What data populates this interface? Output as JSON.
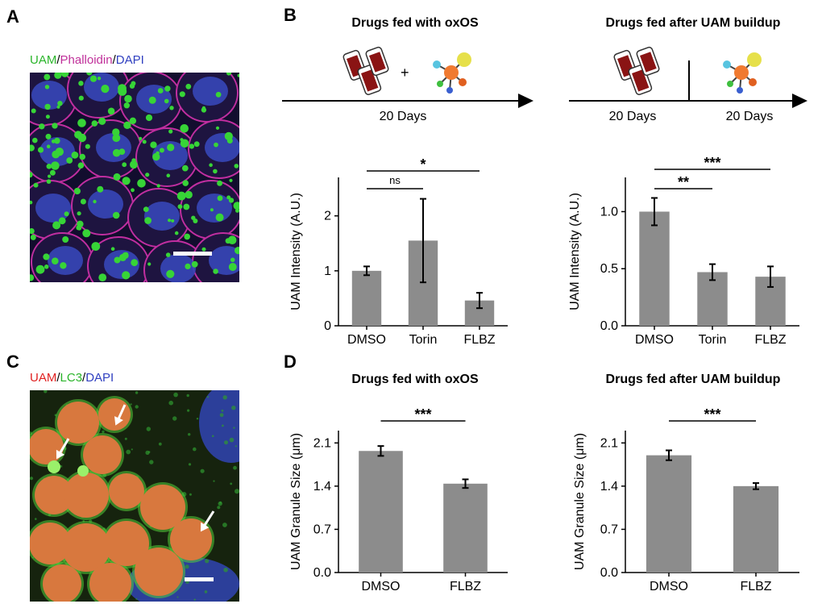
{
  "panels": {
    "a": "A",
    "b": "B",
    "c": "C",
    "d": "D"
  },
  "panel_a": {
    "label_parts": [
      {
        "text": "UAM",
        "color": "#2bb52b"
      },
      {
        "text": "/",
        "color": "#000000"
      },
      {
        "text": "Phalloidin",
        "color": "#c0309a"
      },
      {
        "text": "/",
        "color": "#000000"
      },
      {
        "text": "DAPI",
        "color": "#3040c0"
      }
    ]
  },
  "panel_c": {
    "label_parts": [
      {
        "text": "UAM",
        "color": "#e02020"
      },
      {
        "text": "/",
        "color": "#000000"
      },
      {
        "text": "LC3",
        "color": "#2bb52b"
      },
      {
        "text": "/",
        "color": "#000000"
      },
      {
        "text": "DAPI",
        "color": "#3040c0"
      }
    ]
  },
  "panel_b": {
    "left_heading": "Drugs fed with oxOS",
    "right_heading": "Drugs fed after UAM buildup",
    "plus": "+",
    "left_timeline": "20 Days",
    "right_timeline_1": "20 Days",
    "right_timeline_2": "20 Days"
  },
  "panel_d": {
    "left_heading": "Drugs fed with oxOS",
    "right_heading": "Drugs fed after UAM buildup"
  },
  "colors": {
    "bar": "#8c8c8c",
    "text": "#000000"
  },
  "chart_data": [
    {
      "type": "bar",
      "categories": [
        "DMSO",
        "Torin",
        "FLBZ"
      ],
      "values": [
        1.0,
        1.55,
        0.46
      ],
      "errors": [
        0.08,
        0.76,
        0.14
      ],
      "ylabel": "UAM Intensity (A.U.)",
      "yticks": [
        "0",
        "1",
        "2"
      ],
      "ylim": [
        0,
        2.7
      ],
      "significance": [
        {
          "from": "DMSO",
          "to": "Torin",
          "label": "ns"
        },
        {
          "from": "DMSO",
          "to": "FLBZ",
          "label": "*"
        }
      ]
    },
    {
      "type": "bar",
      "categories": [
        "DMSO",
        "Torin",
        "FLBZ"
      ],
      "values": [
        1.0,
        0.47,
        0.43
      ],
      "errors": [
        0.12,
        0.07,
        0.09
      ],
      "ylabel": "UAM Intensity (A.U.)",
      "yticks": [
        "0.0",
        "0.5",
        "1.0"
      ],
      "ylim": [
        0,
        1.3
      ],
      "significance": [
        {
          "from": "DMSO",
          "to": "Torin",
          "label": "**"
        },
        {
          "from": "DMSO",
          "to": "FLBZ",
          "label": "***"
        }
      ]
    },
    {
      "type": "bar",
      "categories": [
        "DMSO",
        "FLBZ"
      ],
      "values": [
        1.97,
        1.44
      ],
      "errors": [
        0.08,
        0.07
      ],
      "ylabel": "UAM Granule Size (μm)",
      "yticks": [
        "0.0",
        "0.7",
        "1.4",
        "2.1"
      ],
      "ylim": [
        0,
        2.3
      ],
      "significance": [
        {
          "from": "DMSO",
          "to": "FLBZ",
          "label": "***"
        }
      ]
    },
    {
      "type": "bar",
      "categories": [
        "DMSO",
        "FLBZ"
      ],
      "values": [
        1.9,
        1.4
      ],
      "errors": [
        0.08,
        0.05
      ],
      "ylabel": "UAM Granule Size (μm)",
      "yticks": [
        "0.0",
        "0.7",
        "1.4",
        "2.1"
      ],
      "ylim": [
        0,
        2.3
      ],
      "significance": [
        {
          "from": "DMSO",
          "to": "FLBZ",
          "label": "***"
        }
      ]
    }
  ]
}
